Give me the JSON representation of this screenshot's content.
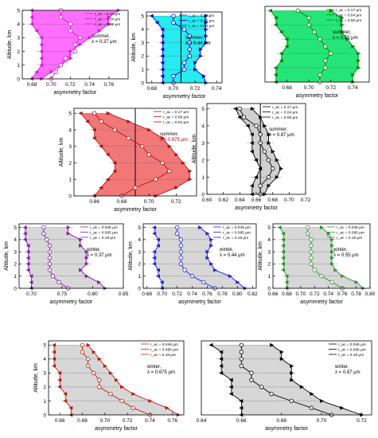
{
  "chart_data": [
    {
      "type": "line",
      "color": "#d020d0",
      "fill": "#ff55ff",
      "vline": null,
      "xlim": [
        0.67,
        0.78
      ],
      "xticks": [
        0.68,
        0.7,
        0.72,
        0.74,
        0.76
      ],
      "xtick_labels": [
        "0.68",
        "0.70",
        "0.72",
        "0.74",
        "0.76"
      ],
      "ylim": [
        0,
        5
      ],
      "yticks": [
        0,
        1,
        2,
        3,
        4,
        5
      ],
      "ytick_labels": [
        "0",
        "1",
        "2",
        "3",
        "4",
        "5"
      ],
      "xlabel": "asymmetry factor",
      "ylabel": "Altitude, km",
      "legend": [
        "r_ac = 0.17 μm",
        "r_ac = 0.04 μm",
        "r_ac = 0.06 μm"
      ],
      "annotation": [
        "summer,",
        "λ = 0.37 μm"
      ],
      "y": [
        0,
        0.5,
        1,
        1.5,
        2,
        2.5,
        3,
        3.5,
        4,
        4.5,
        5
      ],
      "series": [
        {
          "values": [
            0.69,
            0.7,
            0.71,
            0.72,
            0.72,
            0.73,
            0.74,
            0.75,
            0.76,
            0.76,
            0.77
          ]
        },
        {
          "values": [
            0.7,
            0.705,
            0.71,
            0.715,
            0.725,
            0.725,
            0.73,
            0.72,
            0.72,
            0.71,
            0.71
          ]
        },
        {
          "values": [
            0.68,
            0.685,
            0.69,
            0.69,
            0.69,
            0.69,
            0.69,
            0.685,
            0.68,
            0.68,
            0.68
          ]
        }
      ]
    },
    {
      "type": "line",
      "color": "#0000c0",
      "fill": "#00e8ee",
      "vline": 0.707,
      "xlim": [
        0.675,
        0.745
      ],
      "xticks": [
        0.68,
        0.7,
        0.72,
        0.74
      ],
      "xtick_labels": [
        "0.68",
        "0.70",
        "0.72",
        "0.74"
      ],
      "ylim": [
        0,
        5.3
      ],
      "yticks": [
        0,
        1,
        2,
        3,
        4,
        5
      ],
      "ytick_labels": [
        "0",
        "1",
        "2",
        "3",
        "4",
        "5"
      ],
      "xlabel": "asymmetry factor",
      "ylabel": "Altitude, km",
      "legend": [
        "r_ac = 0.17 μm",
        "r_ac = 0.08 μm",
        "r_ac = 0.04 μm"
      ],
      "annotation": [
        "summer,",
        "λ = 0.44 μm"
      ],
      "y": [
        0,
        0.5,
        1,
        1.5,
        2,
        2.5,
        3,
        3.5,
        4,
        4.5,
        5
      ],
      "series": [
        {
          "values": [
            0.73,
            0.728,
            0.72,
            0.72,
            0.725,
            0.725,
            0.73,
            0.73,
            0.73,
            0.73,
            0.73
          ]
        },
        {
          "values": [
            0.7,
            0.7,
            0.71,
            0.71,
            0.715,
            0.715,
            0.715,
            0.715,
            0.71,
            0.7,
            0.7
          ]
        },
        {
          "values": [
            0.69,
            0.69,
            0.69,
            0.69,
            0.69,
            0.69,
            0.69,
            0.69,
            0.69,
            0.685,
            0.68
          ]
        }
      ]
    },
    {
      "type": "line",
      "color": "#008000",
      "fill": "#00e060",
      "vline": null,
      "xlim": [
        0.66,
        0.755
      ],
      "xticks": [
        0.68,
        0.7,
        0.72,
        0.74
      ],
      "xtick_labels": [
        "0.68",
        "0.70",
        "0.72",
        "0.74"
      ],
      "ylim": [
        0,
        5.3
      ],
      "yticks": [],
      "ytick_labels": [],
      "xlabel": "asymmetry factor",
      "ylabel": "",
      "legend": [
        "r_ac = 0.17 μm",
        "r_ac = 0.04 μm",
        "r_ac = 0.06 μm"
      ],
      "annotation": [
        "summer,",
        "λ = 0.55 μm"
      ],
      "y": [
        0,
        0.5,
        1,
        1.5,
        2,
        2.5,
        3,
        3.5,
        4,
        4.5,
        5
      ],
      "series": [
        {
          "values": [
            0.74,
            0.74,
            0.745,
            0.745,
            0.745,
            0.74,
            0.735,
            0.73,
            0.73,
            0.73,
            0.72
          ]
        },
        {
          "values": [
            0.71,
            0.71,
            0.715,
            0.715,
            0.72,
            0.715,
            0.71,
            0.705,
            0.7,
            0.7,
            0.69
          ]
        },
        {
          "values": [
            0.67,
            0.67,
            0.67,
            0.675,
            0.675,
            0.68,
            0.68,
            0.675,
            0.67,
            0.67,
            0.665
          ]
        }
      ]
    },
    {
      "type": "line",
      "color": "#b01010",
      "fill": "#f06060",
      "vline": 0.69,
      "xlim": [
        0.645,
        0.735
      ],
      "xticks": [
        0.66,
        0.68,
        0.7,
        0.72
      ],
      "xtick_labels": [
        "0.66",
        "0.68",
        "0.70",
        "0.72"
      ],
      "ylim": [
        0,
        5.3
      ],
      "yticks": [
        0,
        1,
        2,
        3,
        4,
        5
      ],
      "ytick_labels": [
        "0",
        "1",
        "2",
        "3",
        "4",
        "5"
      ],
      "xlabel": "asymmetry factor",
      "ylabel": "Altitude, km",
      "legend": [
        "r_ac = 0.17 μm",
        "r_ac = 0.08 μm",
        "r_ac = 0.04 μm"
      ],
      "annotation": [
        "summer,",
        "λ = 0.675 μm"
      ],
      "y": [
        0,
        0.5,
        1,
        1.5,
        2,
        2.5,
        3,
        3.5,
        4,
        4.5,
        5
      ],
      "series": [
        {
          "values": [
            0.705,
            0.72,
            0.73,
            0.73,
            0.725,
            0.72,
            0.715,
            0.71,
            0.7,
            0.685,
            0.67
          ]
        },
        {
          "values": [
            0.68,
            0.69,
            0.705,
            0.715,
            0.71,
            0.7,
            0.695,
            0.685,
            0.675,
            0.665,
            0.66
          ]
        },
        {
          "values": [
            0.66,
            0.665,
            0.67,
            0.675,
            0.675,
            0.67,
            0.665,
            0.66,
            0.66,
            0.655,
            0.65
          ]
        }
      ]
    },
    {
      "type": "line",
      "color": "#000000",
      "fill": "#c8c8c8",
      "vline": 0.665,
      "xlim": [
        0.6,
        0.72
      ],
      "xticks": [
        0.6,
        0.62,
        0.64,
        0.66,
        0.68,
        0.7,
        0.72
      ],
      "xtick_labels": [
        "0.60",
        "0.62",
        "0.64",
        "0.66",
        "0.68",
        "0.70",
        "0.72"
      ],
      "ylim": [
        0,
        5.3
      ],
      "yticks": [
        0,
        1,
        2,
        3,
        4,
        5
      ],
      "ytick_labels": [
        "0",
        "1",
        "2",
        "3",
        "4",
        "5"
      ],
      "xlabel": "asymmetry factor",
      "ylabel": "Altitude, km",
      "legend": [
        "r_ac = 0.17 μm",
        "r_ac = 0.04 μm",
        "r_ac = 0.08 μm"
      ],
      "annotation": [
        "summer,",
        "λ = 0.87 μm"
      ],
      "y": [
        0,
        0.5,
        1,
        1.5,
        2,
        2.5,
        3,
        3.5,
        4,
        4.5,
        5
      ],
      "series": [
        {
          "values": [
            0.67,
            0.675,
            0.685,
            0.69,
            0.685,
            0.68,
            0.675,
            0.675,
            0.67,
            0.665,
            0.655
          ]
        },
        {
          "values": [
            0.665,
            0.665,
            0.675,
            0.68,
            0.675,
            0.67,
            0.665,
            0.665,
            0.66,
            0.645,
            0.64
          ]
        },
        {
          "values": [
            0.655,
            0.655,
            0.66,
            0.665,
            0.66,
            0.655,
            0.655,
            0.655,
            0.65,
            0.64,
            0.635
          ]
        }
      ]
    },
    {
      "type": "line",
      "color": "#8020a0",
      "fill": "#d0d0d0",
      "vline": null,
      "xlim": [
        0.68,
        0.85
      ],
      "xticks": [
        0.7,
        0.75,
        0.8,
        0.85
      ],
      "xtick_labels": [
        "0.70",
        "0.75",
        "0.80",
        "0.85"
      ],
      "ylim": [
        0,
        5.3
      ],
      "yticks": [
        0,
        1,
        2,
        3,
        4,
        5
      ],
      "ytick_labels": [
        "0",
        "1",
        "2",
        "3",
        "4",
        "5"
      ],
      "xlabel": "asymmetry factor",
      "ylabel": "Altitude, km",
      "legend": [
        "r_ac = 0.046 μm",
        "r_ac = 0.095 μm",
        "r_ac = 0.19 μm"
      ],
      "annotation": [
        "winter,",
        "λ = 0.37 μm"
      ],
      "y": [
        0,
        0.5,
        1,
        1.5,
        2,
        2.5,
        3,
        3.5,
        4,
        4.5,
        5
      ],
      "series": [
        {
          "values": [
            0.82,
            0.81,
            0.79,
            0.78,
            0.79,
            0.79,
            0.79,
            0.78,
            0.78,
            0.76,
            0.76
          ]
        },
        {
          "values": [
            0.76,
            0.745,
            0.735,
            0.73,
            0.73,
            0.73,
            0.73,
            0.73,
            0.725,
            0.72,
            0.72
          ]
        },
        {
          "values": [
            0.7,
            0.7,
            0.7,
            0.695,
            0.695,
            0.695,
            0.695,
            0.695,
            0.69,
            0.69,
            0.69
          ]
        }
      ]
    },
    {
      "type": "line",
      "color": "#2020e0",
      "fill": "#d0d0d0",
      "vline": null,
      "xlim": [
        0.675,
        0.825
      ],
      "xticks": [
        0.68,
        0.7,
        0.72,
        0.74,
        0.76,
        0.78,
        0.8,
        0.82
      ],
      "xtick_labels": [
        "0.68",
        "0.70",
        "0.72",
        "0.74",
        "0.76",
        "0.78",
        "0.80",
        "0.82"
      ],
      "ylim": [
        0,
        5.3
      ],
      "yticks": [
        0,
        1,
        2,
        3,
        4,
        5
      ],
      "ytick_labels": [
        "0",
        "1",
        "2",
        "3",
        "4",
        "5"
      ],
      "xlabel": "asymmetry factor",
      "ylabel": "Altitude, km",
      "legend": [
        "r_ac = 0.046 μm",
        "r_ac = 0.095 μm",
        "r_ac = 0.19 μm"
      ],
      "annotation": [
        "winter,",
        "λ = 0.44 μm"
      ],
      "y": [
        0,
        0.5,
        1,
        1.5,
        2,
        2.5,
        3,
        3.5,
        4,
        4.5,
        5
      ],
      "series": [
        {
          "values": [
            0.81,
            0.8,
            0.79,
            0.77,
            0.765,
            0.76,
            0.76,
            0.765,
            0.765,
            0.76,
            0.75
          ]
        },
        {
          "values": [
            0.77,
            0.755,
            0.74,
            0.73,
            0.725,
            0.725,
            0.725,
            0.725,
            0.725,
            0.72,
            0.72
          ]
        },
        {
          "values": [
            0.7,
            0.7,
            0.695,
            0.695,
            0.69,
            0.69,
            0.69,
            0.695,
            0.695,
            0.69,
            0.69
          ]
        }
      ]
    },
    {
      "type": "line",
      "color": "#309030",
      "fill": "#d0d0d0",
      "vline": null,
      "xlim": [
        0.66,
        0.8
      ],
      "xticks": [
        0.66,
        0.68,
        0.7,
        0.72,
        0.74,
        0.76,
        0.78,
        0.8
      ],
      "xtick_labels": [
        "0.66",
        "0.68",
        "0.70",
        "0.72",
        "0.74",
        "0.76",
        "0.78",
        "0.80"
      ],
      "ylim": [
        0,
        5.3
      ],
      "yticks": [
        0,
        1,
        2,
        3,
        4,
        5
      ],
      "ytick_labels": [
        "0",
        "1",
        "2",
        "3",
        "4",
        "5"
      ],
      "xlabel": "asymmetry factor",
      "ylabel": "Altitude, km",
      "legend": [
        "r_ac = 0.046 μm",
        "r_ac = 0.095 μm",
        "r_ac = 0.19 μm"
      ],
      "annotation": [
        "winter,",
        "λ = 0.55 μm"
      ],
      "y": [
        0,
        0.5,
        1,
        1.5,
        2,
        2.5,
        3,
        3.5,
        4,
        4.5,
        5
      ],
      "series": [
        {
          "values": [
            0.79,
            0.78,
            0.76,
            0.75,
            0.745,
            0.745,
            0.745,
            0.745,
            0.745,
            0.74,
            0.73
          ]
        },
        {
          "values": [
            0.76,
            0.745,
            0.73,
            0.72,
            0.715,
            0.715,
            0.715,
            0.715,
            0.715,
            0.71,
            0.71
          ]
        },
        {
          "values": [
            0.68,
            0.68,
            0.68,
            0.675,
            0.675,
            0.675,
            0.675,
            0.675,
            0.675,
            0.675,
            0.67
          ]
        }
      ]
    },
    {
      "type": "line",
      "color": "#b02010",
      "fill": "#d0d0d0",
      "vline": null,
      "xlim": [
        0.65,
        0.77
      ],
      "xticks": [
        0.66,
        0.68,
        0.7,
        0.72,
        0.74,
        0.76
      ],
      "xtick_labels": [
        "0.66",
        "0.68",
        "0.70",
        "0.72",
        "0.74",
        "0.76"
      ],
      "ylim": [
        0,
        5.3
      ],
      "yticks": [
        0,
        1,
        2,
        3,
        4,
        5
      ],
      "ytick_labels": [
        "0",
        "1",
        "2",
        "3",
        "4",
        "5"
      ],
      "xlabel": "asymmetry factor",
      "ylabel": "Altitude, km",
      "legend": [
        "r_ac = 0.046 μm",
        "r_ac = 0.095 μm",
        "r_ac ≈ 0.19 μm"
      ],
      "annotation": [
        "winter,",
        "λ = 0.675 μm"
      ],
      "y": [
        0,
        0.5,
        1,
        1.5,
        2,
        2.5,
        3,
        3.5,
        4,
        4.5,
        5
      ],
      "series": [
        {
          "values": [
            0.765,
            0.755,
            0.74,
            0.725,
            0.715,
            0.71,
            0.705,
            0.7,
            0.695,
            0.69,
            0.685
          ]
        },
        {
          "values": [
            0.74,
            0.725,
            0.715,
            0.705,
            0.695,
            0.695,
            0.69,
            0.685,
            0.685,
            0.68,
            0.68
          ]
        },
        {
          "values": [
            0.67,
            0.67,
            0.665,
            0.665,
            0.66,
            0.66,
            0.66,
            0.655,
            0.655,
            0.655,
            0.655
          ]
        }
      ]
    },
    {
      "type": "line",
      "color": "#000000",
      "fill": "#d0d0d0",
      "vline": null,
      "xlim": [
        0.64,
        0.725
      ],
      "xticks": [
        0.64,
        0.66,
        0.68,
        0.7,
        0.72
      ],
      "xtick_labels": [
        "0.64",
        "0.66",
        "0.68",
        "0.70",
        "0.72"
      ],
      "ylim": [
        0,
        5.3
      ],
      "yticks": [],
      "ytick_labels": [],
      "xlabel": "asymmetry factor",
      "ylabel": "",
      "legend": [
        "r_ac = 0.046 μm",
        "r_ac = 0.095 μm",
        "r_ac = 0.19 μm"
      ],
      "annotation": [
        "winter,",
        "λ = 0.87 μm"
      ],
      "y": [
        0,
        0.5,
        1,
        1.5,
        2,
        2.5,
        3,
        3.5,
        4,
        4.5,
        5
      ],
      "series": [
        {
          "values": [
            0.72,
            0.71,
            0.7,
            0.695,
            0.69,
            0.685,
            0.685,
            0.685,
            0.68,
            0.68,
            0.675
          ]
        },
        {
          "values": [
            0.705,
            0.695,
            0.685,
            0.675,
            0.67,
            0.665,
            0.665,
            0.66,
            0.66,
            0.66,
            0.66
          ]
        },
        {
          "values": [
            0.66,
            0.66,
            0.66,
            0.655,
            0.655,
            0.655,
            0.65,
            0.65,
            0.65,
            0.65,
            0.645
          ]
        }
      ]
    }
  ]
}
